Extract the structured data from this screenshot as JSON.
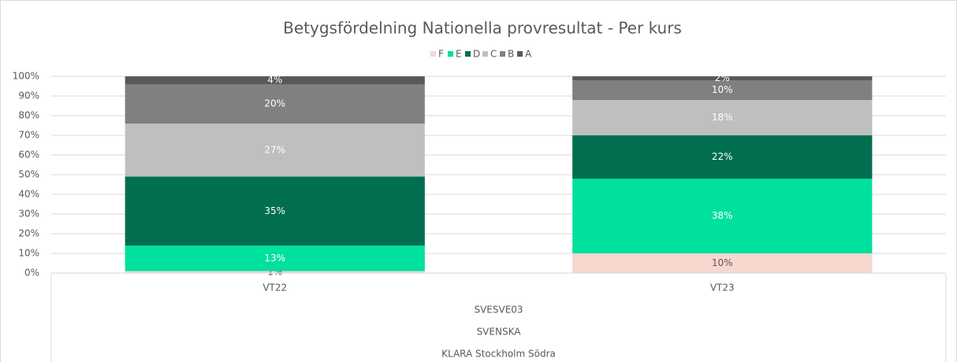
{
  "chart_data": {
    "type": "stacked_bar",
    "title": "Betygsfördelning Nationella provresultat - Per kurs",
    "categories": [
      "VT22",
      "VT23"
    ],
    "category_levels": [
      "SVESVE03",
      "SVENSKA",
      "KLARA Stockholm Södra"
    ],
    "series": [
      {
        "name": "F",
        "color": "#f8d7cf",
        "label_color": "#595959",
        "values": [
          1,
          10
        ],
        "value_labels": [
          "1%",
          "10%"
        ]
      },
      {
        "name": "E",
        "color": "#00e09e",
        "label_color": "#ffffff",
        "values": [
          13,
          38
        ],
        "value_labels": [
          "13%",
          "38%"
        ]
      },
      {
        "name": "D",
        "color": "#006e4f",
        "label_color": "#ffffff",
        "values": [
          35,
          22
        ],
        "value_labels": [
          "35%",
          "22%"
        ]
      },
      {
        "name": "C",
        "color": "#bfbfbf",
        "label_color": "#ffffff",
        "values": [
          27,
          18
        ],
        "value_labels": [
          "27%",
          "18%"
        ]
      },
      {
        "name": "B",
        "color": "#808080",
        "label_color": "#ffffff",
        "values": [
          20,
          10
        ],
        "value_labels": [
          "20%",
          "10%"
        ]
      },
      {
        "name": "A",
        "color": "#595959",
        "label_color": "#ffffff",
        "values": [
          4,
          2
        ],
        "value_labels": [
          "4%",
          "2%"
        ]
      }
    ],
    "ylim": [
      0,
      100
    ],
    "yticks": [
      {
        "value": 0,
        "label": "0%"
      },
      {
        "value": 10,
        "label": "10%"
      },
      {
        "value": 20,
        "label": "20%"
      },
      {
        "value": 30,
        "label": "30%"
      },
      {
        "value": 40,
        "label": "40%"
      },
      {
        "value": 50,
        "label": "50%"
      },
      {
        "value": 60,
        "label": "60%"
      },
      {
        "value": 70,
        "label": "70%"
      },
      {
        "value": 80,
        "label": "80%"
      },
      {
        "value": 90,
        "label": "90%"
      },
      {
        "value": 100,
        "label": "100%"
      }
    ],
    "grid": true,
    "legend": "top"
  }
}
